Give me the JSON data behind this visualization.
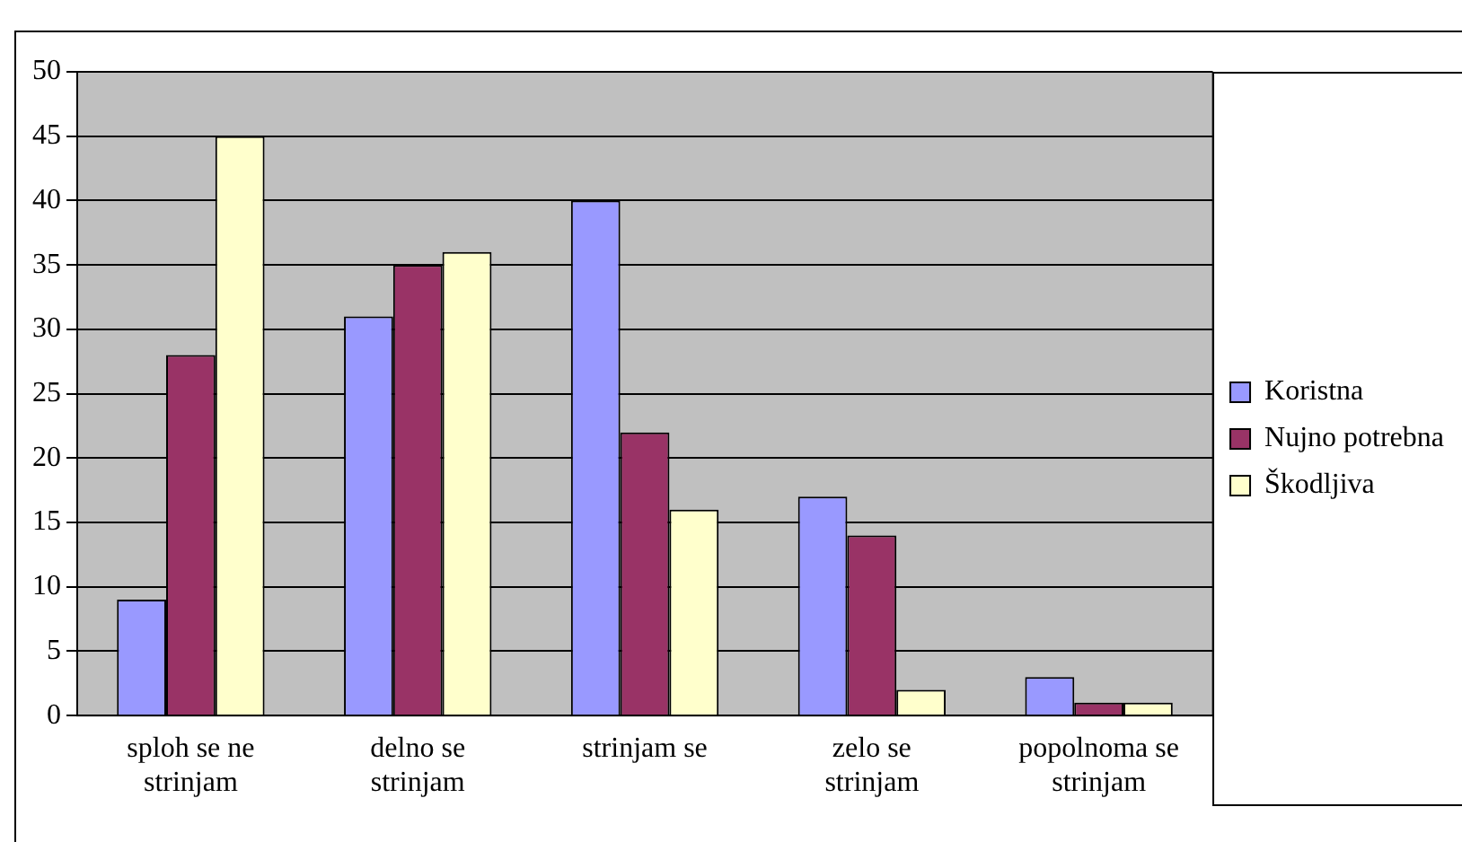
{
  "chart_data": {
    "type": "bar",
    "categories": [
      "sploh se ne strinjam",
      "delno se strinjam",
      "strinjam se",
      "zelo se strinjam",
      "popolnoma se strinjam"
    ],
    "series": [
      {
        "name": "Koristna",
        "color": "#9999ff",
        "values": [
          9,
          31,
          40,
          17,
          3
        ]
      },
      {
        "name": "Nujno potrebna",
        "color": "#993366",
        "values": [
          28,
          35,
          22,
          14,
          1
        ]
      },
      {
        "name": "Škodljiva",
        "color": "#ffffcc",
        "values": [
          45,
          36,
          16,
          2,
          1
        ]
      }
    ],
    "ylim": [
      0,
      50
    ],
    "yticks": [
      0,
      5,
      10,
      15,
      20,
      25,
      30,
      35,
      40,
      45,
      50
    ],
    "grid": "y",
    "legend": "right"
  }
}
